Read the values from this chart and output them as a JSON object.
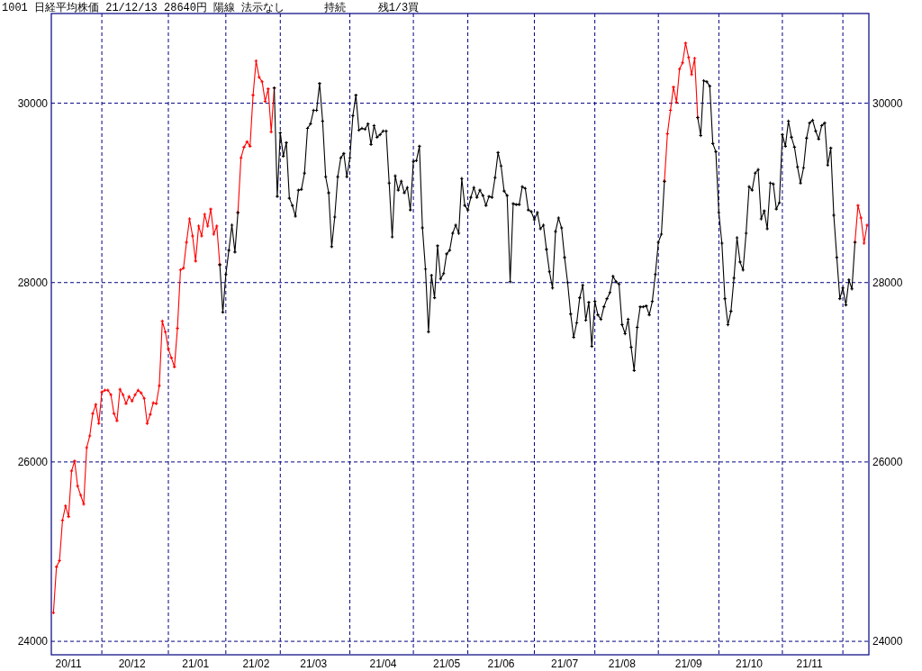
{
  "chart_data": {
    "type": "line",
    "title": "1001 日経平均株価 21/12/13 28640円 陽線 法示なし      持続     残1/3買",
    "categories": [
      null,
      null,
      null,
      null,
      null,
      "20/11",
      null,
      null,
      null,
      null,
      null,
      null,
      null,
      null,
      null,
      null,
      null,
      null,
      null,
      null,
      null,
      null,
      null,
      null,
      null,
      null,
      "20/12",
      null,
      null,
      null,
      null,
      null,
      null,
      null,
      null,
      null,
      null,
      null,
      null,
      null,
      null,
      null,
      null,
      null,
      null,
      null,
      null,
      "21/01",
      null,
      null,
      null,
      null,
      null,
      null,
      null,
      null,
      null,
      null,
      null,
      null,
      null,
      null,
      null,
      null,
      null,
      null,
      null,
      "21/02",
      null,
      null,
      null,
      null,
      null,
      null,
      null,
      null,
      null,
      null,
      null,
      null,
      null,
      null,
      null,
      null,
      null,
      null,
      "21/03",
      null,
      null,
      null,
      null,
      null,
      null,
      null,
      null,
      null,
      null,
      null,
      null,
      null,
      null,
      null,
      null,
      null,
      null,
      null,
      null,
      null,
      null,
      "21/04",
      null,
      null,
      null,
      null,
      null,
      null,
      null,
      null,
      null,
      null,
      null,
      null,
      null,
      null,
      null,
      null,
      null,
      null,
      null,
      null,
      "21/05",
      null,
      null,
      null,
      null,
      null,
      null,
      null,
      null,
      null,
      null,
      null,
      null,
      null,
      null,
      null,
      null,
      null,
      "21/06",
      null,
      null,
      null,
      null,
      null,
      null,
      null,
      null,
      null,
      null,
      null,
      null,
      null,
      null,
      null,
      null,
      null,
      null,
      null,
      null,
      "21/07",
      null,
      null,
      null,
      null,
      null,
      null,
      null,
      null,
      null,
      null,
      null,
      null,
      null,
      null,
      null,
      null,
      null,
      null,
      "21/08",
      null,
      null,
      null,
      null,
      null,
      null,
      null,
      null,
      null,
      null,
      null,
      null,
      null,
      null,
      null,
      null,
      null,
      null,
      null,
      null,
      null,
      "21/09",
      null,
      null,
      null,
      null,
      null,
      null,
      null,
      null,
      null,
      null,
      null,
      null,
      null,
      null,
      null,
      null,
      null,
      null,
      null,
      "21/10",
      null,
      null,
      null,
      null,
      null,
      null,
      null,
      null,
      null,
      null,
      null,
      null,
      null,
      null,
      null,
      null,
      null,
      null,
      null,
      "21/11",
      null,
      null,
      null,
      null,
      null,
      null,
      null,
      null,
      null,
      null,
      null,
      null,
      null,
      null,
      null,
      null,
      null,
      null,
      null
    ],
    "ylim": [
      23850,
      31000
    ],
    "yticks": [
      24000,
      26000,
      28000,
      30000
    ],
    "y2lim": [
      23850,
      31000
    ],
    "y2ticks": [
      24000,
      26000,
      28000,
      30000
    ],
    "grid": "y",
    "marker": "cross",
    "series": [
      {
        "color": "#ff0000",
        "values": [
          24320,
          24830,
          24900,
          25350,
          25510,
          25390,
          25900,
          26010,
          25730,
          25630,
          25530,
          26160,
          26290,
          26540,
          26640,
          26430,
          26780,
          26800,
          26800,
          26750,
          26540,
          26460,
          26810,
          26750,
          26650,
          26730,
          26680,
          26750,
          26800,
          26770,
          26710,
          26430,
          26530,
          26660,
          26650,
          26850,
          27570,
          27450,
          27260,
          27160,
          27060,
          27490,
          28140,
          28160,
          28450,
          28710,
          28520,
          28240,
          28630,
          28520,
          28760,
          28630,
          28820,
          28540,
          28630,
          28200,
          null,
          null,
          null,
          null,
          null,
          28780,
          29390,
          29510,
          29570,
          29520,
          30090,
          30470,
          30290,
          30240,
          30020,
          30160,
          29680,
          30170,
          null,
          null,
          null,
          null,
          null,
          null,
          null,
          null,
          null,
          null,
          null,
          null,
          null,
          null,
          null,
          null,
          null,
          null,
          null,
          null,
          null,
          null,
          null,
          null,
          null,
          null,
          null,
          null,
          null,
          null,
          null,
          null,
          null,
          null,
          null,
          null,
          null,
          null,
          null,
          null,
          null,
          null,
          null,
          null,
          null,
          null,
          null,
          null,
          null,
          null,
          null,
          null,
          null,
          null,
          null,
          null,
          null,
          null,
          null,
          null,
          null,
          null,
          null,
          null,
          null,
          null,
          null,
          null,
          null,
          null,
          null,
          null,
          null,
          null,
          null,
          null,
          null,
          null,
          null,
          null,
          null,
          null,
          null,
          null,
          null,
          null,
          null,
          null,
          null,
          null,
          null,
          null,
          null,
          null,
          null,
          null,
          null,
          null,
          null,
          null,
          null,
          null,
          null,
          null,
          null,
          null,
          null,
          null,
          null,
          null,
          null,
          null,
          null,
          null,
          null,
          null,
          null,
          null,
          null,
          null,
          null,
          null,
          null,
          null,
          null,
          null,
          null,
          null,
          29130,
          29660,
          29920,
          30180,
          30010,
          30380,
          30450,
          30670,
          30510,
          30320,
          30500,
          29840,
          null,
          null,
          null,
          null,
          null,
          null,
          null,
          null,
          null,
          null,
          null,
          null,
          null,
          null,
          null,
          null,
          null,
          null,
          null,
          null,
          null,
          null,
          null,
          null,
          null,
          null,
          null,
          null,
          null,
          null,
          null,
          null,
          null,
          null,
          null,
          null,
          null,
          null,
          null,
          null,
          null,
          null,
          null,
          null,
          null,
          null,
          null,
          null,
          null,
          null,
          null,
          28450,
          28860,
          28720,
          28440,
          28640
        ]
      },
      {
        "color": "#000000",
        "values": [
          null,
          null,
          null,
          null,
          null,
          null,
          null,
          null,
          null,
          null,
          null,
          null,
          null,
          null,
          null,
          null,
          null,
          null,
          null,
          null,
          null,
          null,
          null,
          null,
          null,
          null,
          null,
          null,
          null,
          null,
          null,
          null,
          null,
          null,
          null,
          null,
          null,
          null,
          null,
          null,
          null,
          null,
          null,
          null,
          null,
          null,
          null,
          null,
          null,
          null,
          null,
          null,
          null,
          null,
          null,
          28200,
          27670,
          28090,
          28360,
          28640,
          28340,
          28780,
          null,
          null,
          null,
          null,
          null,
          null,
          null,
          null,
          null,
          null,
          null,
          30170,
          28960,
          29670,
          29410,
          29560,
          28940,
          28860,
          28740,
          29030,
          29040,
          29220,
          29720,
          29770,
          29920,
          29920,
          30220,
          29800,
          29180,
          29000,
          28400,
          28730,
          29180,
          29390,
          29440,
          29180,
          29390,
          29860,
          30090,
          29700,
          29720,
          29710,
          29770,
          29540,
          29750,
          29620,
          29650,
          29690,
          29690,
          29110,
          28510,
          29190,
          29030,
          29130,
          29000,
          29060,
          28810,
          29350,
          29360,
          29520,
          28610,
          28150,
          27450,
          28080,
          27830,
          28410,
          28040,
          28100,
          28320,
          28360,
          28550,
          28640,
          28550,
          29160,
          28860,
          28810,
          28950,
          29060,
          28950,
          29030,
          28970,
          28860,
          28960,
          28950,
          29170,
          29450,
          29300,
          29020,
          28970,
          28010,
          28880,
          28870,
          28870,
          29070,
          29050,
          28810,
          28790,
          28700,
          28780,
          28600,
          28640,
          28370,
          28120,
          27940,
          28570,
          28720,
          28610,
          28280,
          28000,
          27650,
          27390,
          27550,
          27830,
          27970,
          27580,
          27780,
          27290,
          27790,
          27640,
          27590,
          27730,
          27820,
          27890,
          28070,
          28010,
          27980,
          27530,
          27430,
          27590,
          27280,
          27020,
          27500,
          27730,
          27730,
          27740,
          27640,
          27790,
          28090,
          28450,
          28540,
          29130,
          null,
          null,
          null,
          null,
          null,
          null,
          null,
          null,
          null,
          null,
          29840,
          29640,
          30250,
          30240,
          30190,
          29550,
          29460,
          28780,
          28440,
          27820,
          27530,
          27680,
          28050,
          28500,
          28230,
          28140,
          28550,
          29070,
          29030,
          29220,
          29260,
          28710,
          28800,
          28600,
          29110,
          29100,
          28820,
          28890,
          29650,
          29520,
          29800,
          29620,
          29510,
          29290,
          29110,
          29280,
          29610,
          29780,
          29810,
          29690,
          29600,
          29750,
          29780,
          29310,
          29500,
          28750,
          28280,
          27820,
          27940,
          27750,
          28030,
          27930,
          28450,
          null,
          null,
          null,
          null
        ]
      }
    ]
  }
}
